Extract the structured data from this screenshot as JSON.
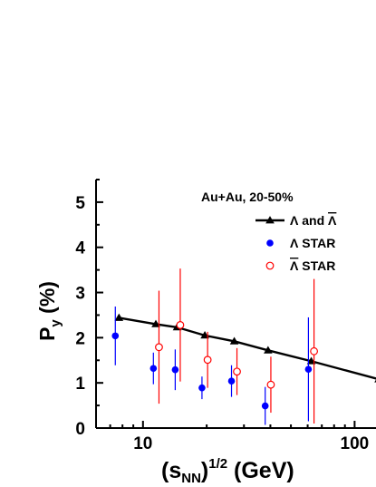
{
  "chart_data": {
    "type": "scatter",
    "xscale": "log",
    "xlim": [
      6,
      130
    ],
    "ylim": [
      0,
      5.5
    ],
    "x_ticks": [
      10,
      100
    ],
    "x_tick_labels": [
      "10",
      "100"
    ],
    "y_ticks": [
      0,
      1,
      2,
      3,
      4,
      5
    ],
    "y_tick_labels": [
      "0",
      "1",
      "2",
      "3",
      "4",
      "5"
    ],
    "xlabel": {
      "main": "(s",
      "sub": "NN",
      "sup": ")",
      "exp": "1/2",
      "unit": " (GeV)"
    },
    "ylabel": {
      "main": "P",
      "sub": "y",
      "unit": " (%)"
    },
    "annotation": "Au+Au, 20-50%",
    "legend_position": "top-right",
    "series": [
      {
        "name": "Λ and Λ̄",
        "legend_main": "Λ and ",
        "legend_bar": "Λ",
        "marker": "triangle",
        "color": "#000000",
        "line": true,
        "x": [
          7.7,
          11.5,
          14.5,
          19.6,
          27,
          39,
          62.4,
          130
        ],
        "y": [
          2.44,
          2.3,
          2.23,
          2.05,
          1.92,
          1.72,
          1.48,
          1.08
        ]
      },
      {
        "name": "Λ STAR",
        "legend_main": "Λ STAR",
        "marker": "filled-circle",
        "color": "#0000ff",
        "x": [
          7.4,
          11.2,
          14.2,
          19.0,
          26.2,
          37.8,
          60.5
        ],
        "y": [
          2.04,
          1.32,
          1.29,
          0.89,
          1.04,
          0.49,
          1.3
        ],
        "yerr_low": [
          0.65,
          0.35,
          0.45,
          0.25,
          0.35,
          0.42,
          1.15
        ],
        "yerr_high": [
          0.65,
          0.35,
          0.45,
          0.25,
          0.35,
          0.42,
          1.15
        ]
      },
      {
        "name": "Λ̄ STAR",
        "legend_bar": "Λ",
        "legend_rest": " STAR",
        "marker": "open-circle",
        "color": "#ff0000",
        "x": [
          11.9,
          15.0,
          20.2,
          27.8,
          40.2,
          64.3
        ],
        "y": [
          1.79,
          2.28,
          1.51,
          1.25,
          0.96,
          1.7
        ],
        "yerr_low": [
          1.25,
          1.25,
          0.62,
          0.52,
          0.62,
          1.6
        ],
        "yerr_high": [
          1.25,
          1.25,
          0.62,
          0.52,
          0.62,
          1.6
        ]
      }
    ]
  }
}
